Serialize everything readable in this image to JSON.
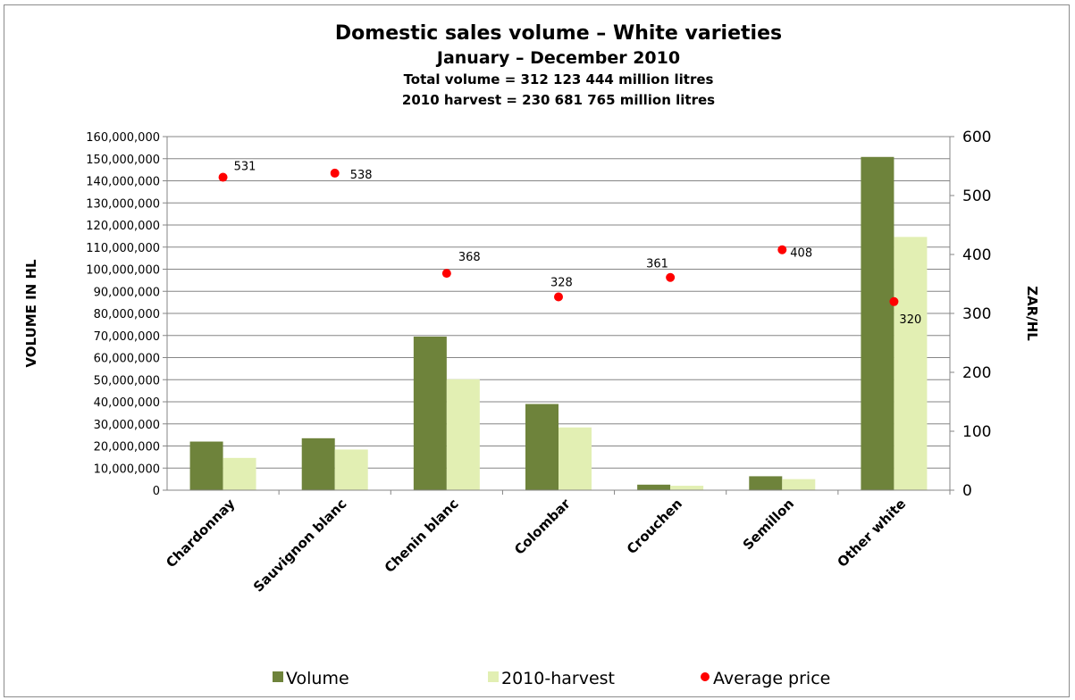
{
  "chart_data": {
    "type": "bar",
    "title": "Domestic sales volume – White varieties",
    "subtitle": "January – December 2010",
    "subtitle_lines": [
      "Total volume = 312 123 444 million litres",
      "2010 harvest = 230 681 765 million litres"
    ],
    "ylabel": "VOLUME IN HL",
    "y2label": "ZAR/HL",
    "ylim": [
      0,
      160000000
    ],
    "y2lim": [
      0,
      600
    ],
    "yticks": [
      "0",
      "10,000,000",
      "20,000,000",
      "30,000,000",
      "40,000,000",
      "50,000,000",
      "60,000,000",
      "70,000,000",
      "80,000,000",
      "90,000,000",
      "100,000,000",
      "110,000,000",
      "120,000,000",
      "130,000,000",
      "140,000,000",
      "150,000,000",
      "160,000,000"
    ],
    "y2ticks": [
      "0",
      "100",
      "200",
      "300",
      "400",
      "500",
      "600"
    ],
    "grid": true,
    "legend_position": "bottom",
    "categories": [
      "Chardonnay",
      "Sauvignon blanc",
      "Chenin blanc",
      "Colombar",
      "Crouchen",
      "Semillon",
      "Other white"
    ],
    "series": [
      {
        "name": "Volume",
        "kind": "bar",
        "axis": "left",
        "color": "#6e833b",
        "values": [
          22000000,
          23500000,
          69500000,
          39000000,
          2500000,
          6300000,
          150800000
        ]
      },
      {
        "name": "2010-harvest",
        "kind": "bar",
        "axis": "left",
        "color": "#e2efb3",
        "values": [
          14600000,
          18400000,
          50200000,
          28400000,
          2000000,
          5000000,
          114600000
        ]
      },
      {
        "name": "Average price",
        "kind": "scatter",
        "axis": "right",
        "color": "#ff0000",
        "values": [
          531,
          538,
          368,
          328,
          361,
          408,
          320
        ],
        "labels": [
          "531",
          "538",
          "368",
          "328",
          "361",
          "408",
          "320"
        ]
      }
    ]
  }
}
